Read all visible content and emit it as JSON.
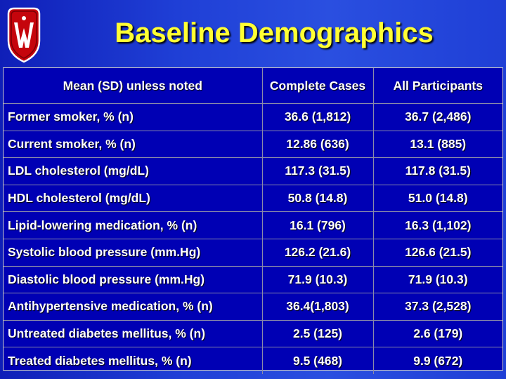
{
  "slide": {
    "title": "Baseline Demographics",
    "colors": {
      "background": "#2a4fe0",
      "title": "#ffff33",
      "table_bg": "#0000b4",
      "text": "#ffffff",
      "logo_red": "#c5050c"
    },
    "logo_icon": "uw-crest-icon"
  },
  "table": {
    "headers": [
      "Mean (SD) unless noted",
      "Complete Cases",
      "All Participants"
    ],
    "rows": [
      {
        "label": "Former smoker, % (n)",
        "complete": "36.6 (1,812)",
        "all": "36.7 (2,486)"
      },
      {
        "label": "Current smoker, % (n)",
        "complete": "12.86 (636)",
        "all": "13.1 (885)"
      },
      {
        "label": "LDL cholesterol (mg/dL)",
        "complete": "117.3 (31.5)",
        "all": "117.8 (31.5)"
      },
      {
        "label": "HDL cholesterol (mg/dL)",
        "complete": "50.8 (14.8)",
        "all": "51.0 (14.8)"
      },
      {
        "label": "Lipid-lowering medication, % (n)",
        "complete": "16.1 (796)",
        "all": "16.3 (1,102)"
      },
      {
        "label": "Systolic blood pressure (mm.Hg)",
        "complete": "126.2 (21.6)",
        "all": "126.6 (21.5)"
      },
      {
        "label": "Diastolic blood pressure (mm.Hg)",
        "complete": "71.9 (10.3)",
        "all": "71.9 (10.3)"
      },
      {
        "label": "Antihypertensive medication, % (n)",
        "complete": "36.4(1,803)",
        "all": "37.3 (2,528)"
      },
      {
        "label": "Untreated diabetes mellitus, % (n)",
        "complete": "2.5 (125)",
        "all": "2.6 (179)"
      },
      {
        "label": "Treated diabetes mellitus, % (n)",
        "complete": "9.5 (468)",
        "all": "9.9 (672)"
      }
    ]
  }
}
